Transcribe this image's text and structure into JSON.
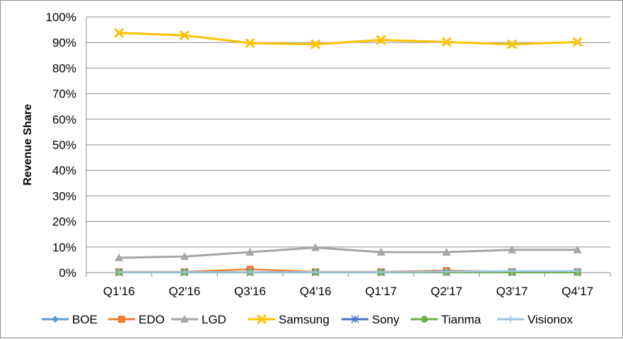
{
  "chart_data": {
    "type": "line",
    "title": "",
    "xlabel": "",
    "ylabel": "Revenue Share",
    "ylim": [
      0,
      100
    ],
    "ytick_step": 10,
    "y_unit": "%",
    "grid": true,
    "legend_position": "bottom",
    "categories": [
      "Q1'16",
      "Q2'16",
      "Q3'16",
      "Q4'16",
      "Q1'17",
      "Q2'17",
      "Q3'17",
      "Q4'17"
    ],
    "series": [
      {
        "name": "BOE",
        "color": "#5b9bd5",
        "marker": "diamond",
        "values": [
          0.1,
          0.1,
          0.1,
          0.1,
          0.1,
          0.2,
          0.3,
          0.3
        ]
      },
      {
        "name": "EDO",
        "color": "#ed7d31",
        "marker": "square",
        "values": [
          0.3,
          0.3,
          1.3,
          0.3,
          0.3,
          0.8,
          0.3,
          0.3
        ]
      },
      {
        "name": "LGD",
        "color": "#a5a5a5",
        "marker": "triangle",
        "values": [
          5.8,
          6.3,
          8.0,
          9.8,
          8.0,
          8.0,
          8.9,
          8.9
        ]
      },
      {
        "name": "Samsung",
        "color": "#ffc000",
        "marker": "x",
        "values": [
          93.8,
          92.8,
          89.8,
          89.3,
          91.0,
          90.2,
          89.3,
          90.2
        ]
      },
      {
        "name": "Sony",
        "color": "#4472c4",
        "marker": "star",
        "values": [
          0.1,
          0.1,
          0.1,
          0.1,
          0.1,
          0.1,
          0.1,
          0.1
        ]
      },
      {
        "name": "Tianma",
        "color": "#70ad47",
        "marker": "circle",
        "values": [
          0.1,
          0.1,
          0.1,
          0.1,
          0.1,
          0.1,
          0.1,
          0.1
        ]
      },
      {
        "name": "Visionox",
        "color": "#9dc3e6",
        "marker": "plus",
        "values": [
          0.2,
          0.2,
          0.2,
          0.2,
          0.2,
          0.4,
          0.6,
          0.6
        ]
      }
    ]
  }
}
